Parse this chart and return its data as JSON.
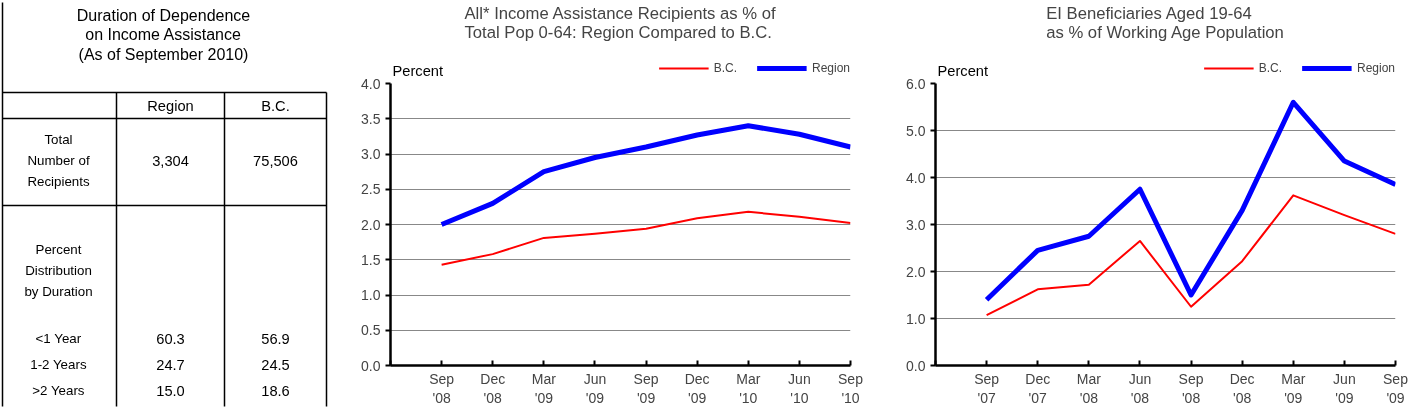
{
  "chart_data": [
    {
      "type": "other",
      "title": "Duration of Dependence\non Income Assistance\n(As of September 2010)",
      "annotations": [
        "Region",
        "B.C.",
        "Total\nNumber of\nRecipients",
        "3,304",
        "75,506",
        "Percent\nDistribution\nby Duration",
        "<1 Year",
        "60.3",
        "56.9",
        "1-2 Years",
        "24.7",
        "24.5",
        ">2 Years",
        "15.0",
        "18.6"
      ]
    },
    {
      "type": "line",
      "title": "All* Income Assistance Recipients as % of\nTotal Pop 0-64: Region Compared to B.C.",
      "ylabel": "Percent",
      "categories": [
        null,
        "Sep\n'08",
        "Dec\n'08",
        "Mar\n'09",
        "Jun\n'09",
        "Sep\n'09",
        "Dec\n'09",
        "Mar\n'10",
        "Jun\n'10",
        "Sep\n'10"
      ],
      "ylim": [
        0,
        4
      ],
      "yticks": [
        {
          "value": 0,
          "label": "0.0"
        },
        {
          "value": 0.5,
          "label": "0.5"
        },
        {
          "value": 1,
          "label": "1.0"
        },
        {
          "value": 1.5,
          "label": "1.5"
        },
        {
          "value": 2,
          "label": "2.0"
        },
        {
          "value": 2.5,
          "label": "2.5"
        },
        {
          "value": 3,
          "label": "3.0"
        },
        {
          "value": 3.5,
          "label": "3.5"
        },
        {
          "value": 4,
          "label": "4.0"
        }
      ],
      "grid": "y",
      "legend": "top right",
      "series": [
        {
          "name": "B.C.",
          "color": "#ff0000",
          "values": [
            null,
            1.43,
            1.58,
            1.81,
            1.87,
            1.94,
            2.09,
            2.18,
            2.11,
            2.02
          ]
        },
        {
          "name": "Region",
          "color": "#0000ff",
          "values": [
            null,
            2.0,
            2.3,
            2.75,
            2.95,
            3.1,
            3.27,
            3.4,
            3.28,
            3.1
          ]
        }
      ]
    },
    {
      "type": "line",
      "title": "EI Beneficiaries Aged 19-64\nas % of Working Age Population",
      "ylabel": "Percent",
      "categories": [
        null,
        "Sep\n'07",
        "Dec\n'07",
        "Mar\n'08",
        "Jun\n'08",
        "Sep\n'08",
        "Dec\n'08",
        "Mar\n'09",
        "Jun\n'09",
        "Sep\n'09"
      ],
      "ylim": [
        0,
        6
      ],
      "yticks": [
        {
          "value": 0,
          "label": "0.0"
        },
        {
          "value": 1,
          "label": "1.0"
        },
        {
          "value": 2,
          "label": "2.0"
        },
        {
          "value": 3,
          "label": "3.0"
        },
        {
          "value": 4,
          "label": "4.0"
        },
        {
          "value": 5,
          "label": "5.0"
        },
        {
          "value": 6,
          "label": "6.0"
        }
      ],
      "grid": "y",
      "legend": "top right",
      "series": [
        {
          "name": "B.C.",
          "color": "#ff0000",
          "values": [
            null,
            1.07,
            1.62,
            1.72,
            2.65,
            1.25,
            2.22,
            3.62,
            3.2,
            2.8
          ]
        },
        {
          "name": "Region",
          "color": "#0000ff",
          "values": [
            null,
            1.4,
            2.45,
            2.75,
            3.75,
            1.5,
            3.3,
            5.6,
            4.35,
            3.85
          ]
        }
      ]
    }
  ]
}
